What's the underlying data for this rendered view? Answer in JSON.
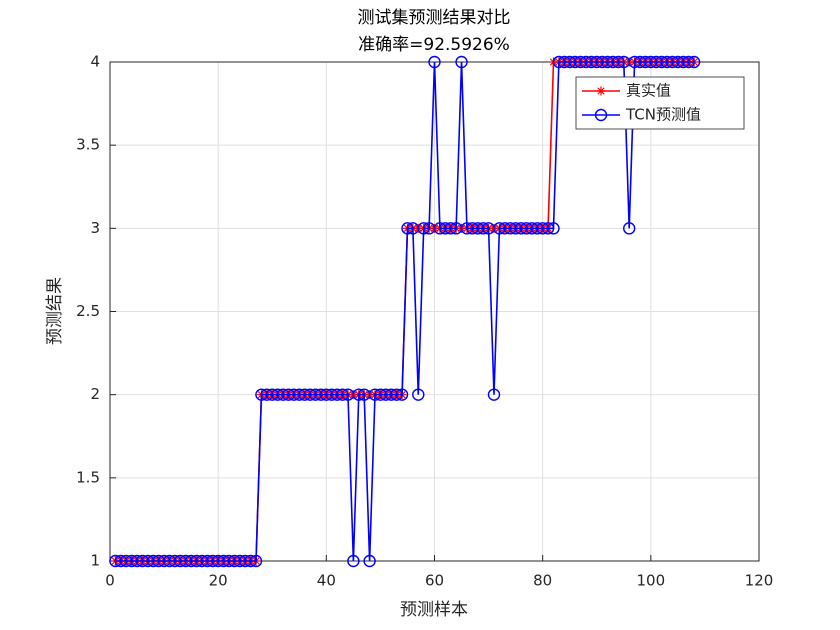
{
  "chart_data": {
    "type": "line",
    "title": "测试集预测结果对比",
    "subtitle": "准确率=92.5926%",
    "x_label": "预测样本",
    "y_label": "预测结果",
    "x": [
      1,
      2,
      3,
      4,
      5,
      6,
      7,
      8,
      9,
      10,
      11,
      12,
      13,
      14,
      15,
      16,
      17,
      18,
      19,
      20,
      21,
      22,
      23,
      24,
      25,
      26,
      27,
      28,
      29,
      30,
      31,
      32,
      33,
      34,
      35,
      36,
      37,
      38,
      39,
      40,
      41,
      42,
      43,
      44,
      45,
      46,
      47,
      48,
      49,
      50,
      51,
      52,
      53,
      54,
      55,
      56,
      57,
      58,
      59,
      60,
      61,
      62,
      63,
      64,
      65,
      66,
      67,
      68,
      69,
      70,
      71,
      72,
      73,
      74,
      75,
      76,
      77,
      78,
      79,
      80,
      81,
      82,
      83,
      84,
      85,
      86,
      87,
      88,
      89,
      90,
      91,
      92,
      93,
      94,
      95,
      96,
      97,
      98,
      99,
      100,
      101,
      102,
      103,
      104,
      105,
      106,
      107,
      108
    ],
    "series": [
      {
        "name": "真实值",
        "color": "#ff0000",
        "marker": "asterisk",
        "values": [
          1,
          1,
          1,
          1,
          1,
          1,
          1,
          1,
          1,
          1,
          1,
          1,
          1,
          1,
          1,
          1,
          1,
          1,
          1,
          1,
          1,
          1,
          1,
          1,
          1,
          1,
          1,
          2,
          2,
          2,
          2,
          2,
          2,
          2,
          2,
          2,
          2,
          2,
          2,
          2,
          2,
          2,
          2,
          2,
          2,
          2,
          2,
          2,
          2,
          2,
          2,
          2,
          2,
          2,
          3,
          3,
          3,
          3,
          3,
          3,
          3,
          3,
          3,
          3,
          3,
          3,
          3,
          3,
          3,
          3,
          3,
          3,
          3,
          3,
          3,
          3,
          3,
          3,
          3,
          3,
          3,
          4,
          4,
          4,
          4,
          4,
          4,
          4,
          4,
          4,
          4,
          4,
          4,
          4,
          4,
          4,
          4,
          4,
          4,
          4,
          4,
          4,
          4,
          4,
          4,
          4,
          4,
          4
        ]
      },
      {
        "name": "TCN预测值",
        "color": "#0000ff",
        "marker": "circle",
        "values": [
          1,
          1,
          1,
          1,
          1,
          1,
          1,
          1,
          1,
          1,
          1,
          1,
          1,
          1,
          1,
          1,
          1,
          1,
          1,
          1,
          1,
          1,
          1,
          1,
          1,
          1,
          1,
          2,
          2,
          2,
          2,
          2,
          2,
          2,
          2,
          2,
          2,
          2,
          2,
          2,
          2,
          2,
          2,
          2,
          1,
          2,
          2,
          1,
          2,
          2,
          2,
          2,
          2,
          2,
          3,
          3,
          2,
          3,
          3,
          4,
          3,
          3,
          3,
          3,
          4,
          3,
          3,
          3,
          3,
          3,
          2,
          3,
          3,
          3,
          3,
          3,
          3,
          3,
          3,
          3,
          3,
          3,
          4,
          4,
          4,
          4,
          4,
          4,
          4,
          4,
          4,
          4,
          4,
          4,
          4,
          3,
          4,
          4,
          4,
          4,
          4,
          4,
          4,
          4,
          4,
          4,
          4,
          4
        ]
      }
    ],
    "xlim": [
      0,
      120
    ],
    "xticks": [
      0,
      20,
      40,
      60,
      80,
      100,
      120
    ],
    "ylim": [
      1,
      4
    ],
    "yticks": [
      1,
      1.5,
      2,
      2.5,
      3,
      3.5,
      4
    ],
    "grid": true,
    "legend": "northeast"
  }
}
